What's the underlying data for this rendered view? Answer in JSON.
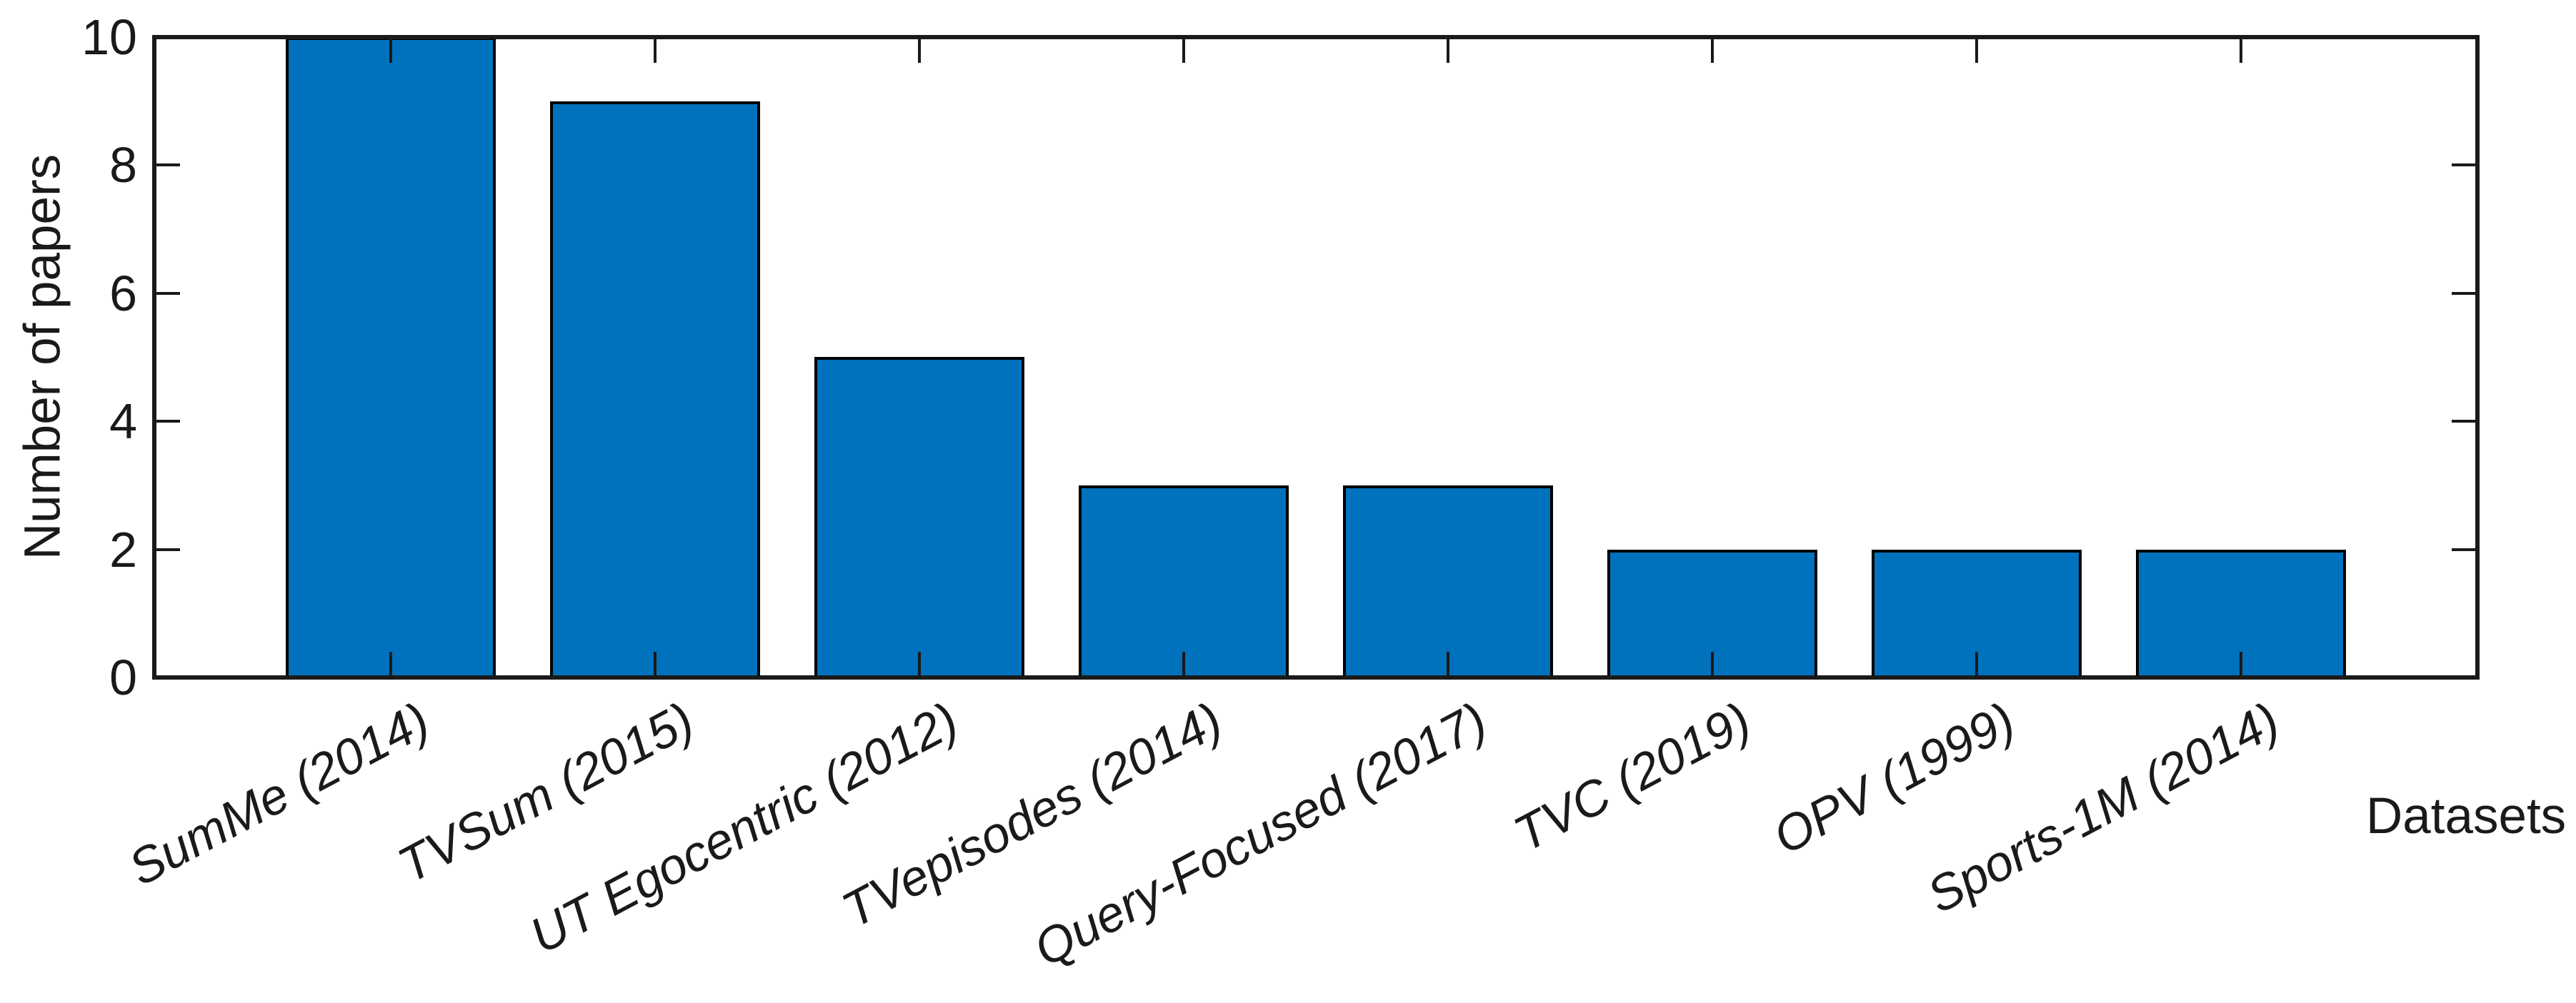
{
  "figure": {
    "background_color": "#ffffff",
    "text_color": "#1a1a1a"
  },
  "chart_data": {
    "type": "bar",
    "title": "",
    "xlabel": "Datasets",
    "ylabel": "Number of papers",
    "categories": [
      "SumMe (2014)",
      "TVSum (2015)",
      "UT Egocentric (2012)",
      "TVepisodes (2014)",
      "Query-Focused (2017)",
      "TVC (2019)",
      "OPV (1999)",
      "Sports-1M (2014)"
    ],
    "values": [
      10,
      9,
      5,
      3,
      3,
      2,
      2,
      2
    ],
    "ylim": [
      0,
      10
    ],
    "yticks": [
      0,
      2,
      4,
      6,
      8,
      10
    ],
    "bar_color": "#0072BD",
    "bar_edge_color": "#000000",
    "axis_color": "#1a1a1a",
    "grid": "off",
    "legend": "none",
    "box": "on",
    "tick_direction": "in",
    "xtick_label_style": "italic",
    "xtick_label_rotation_deg": -28
  }
}
